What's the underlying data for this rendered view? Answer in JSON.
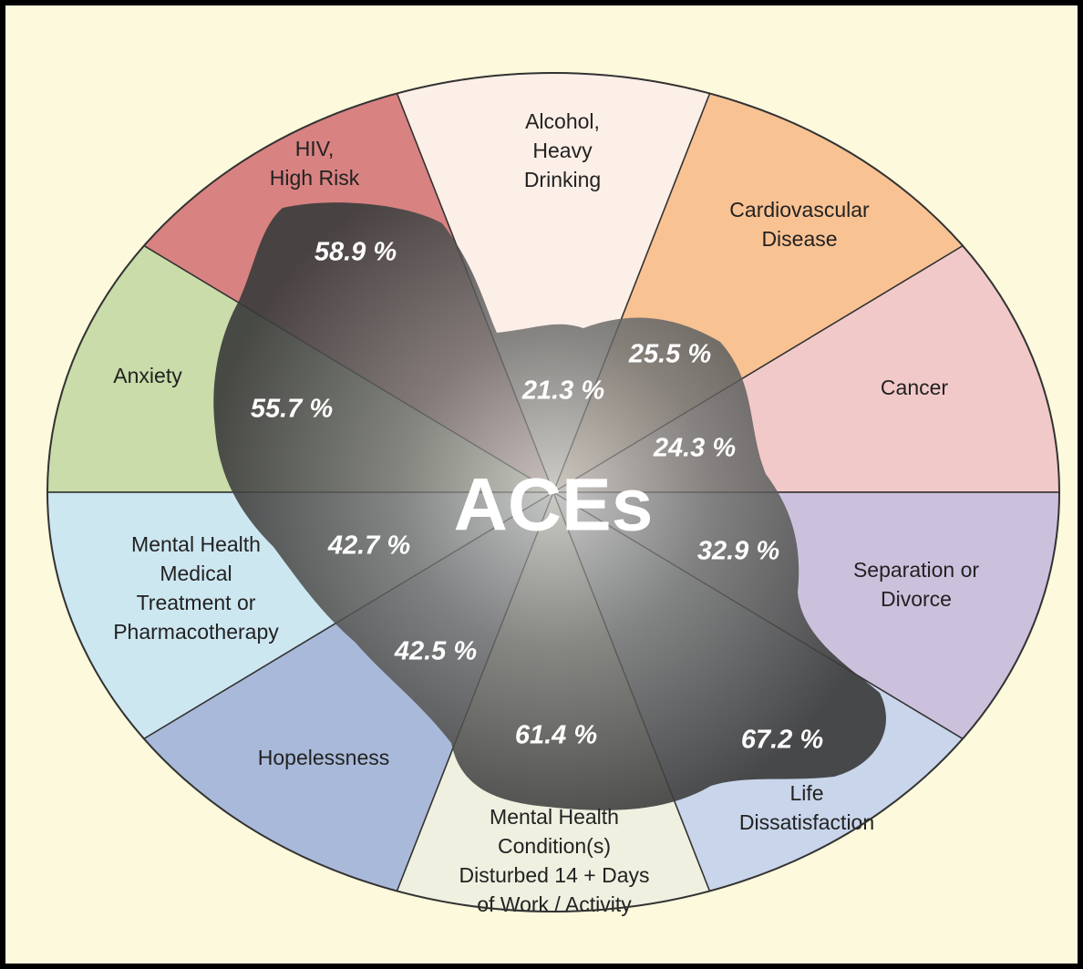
{
  "center": "ACEs",
  "sectors": [
    {
      "label": [
        "Cancer"
      ],
      "value": "24.3 %",
      "color": "#f2c9c9"
    },
    {
      "label": [
        "Cardiovascular",
        "Disease"
      ],
      "value": "25.5 %",
      "color": "#f9c293"
    },
    {
      "label": [
        "Alcohol,",
        "Heavy",
        "Drinking"
      ],
      "value": "21.3 %",
      "color": "#fcefe7"
    },
    {
      "label": [
        "HIV,",
        "High Risk"
      ],
      "value": "58.9 %",
      "color": "#d98282"
    },
    {
      "label": [
        "Anxiety"
      ],
      "value": "55.7 %",
      "color": "#c9dca9"
    },
    {
      "label": [
        "Mental Health",
        "Medical",
        "Treatment or",
        "Pharmacotherapy"
      ],
      "value": "42.7 %",
      "color": "#cde7f1"
    },
    {
      "label": [
        "Hopelessness"
      ],
      "value": "42.5 %",
      "color": "#a9b9d9"
    },
    {
      "label": [
        "Mental Health",
        "Condition(s)",
        "Disturbed 14 + Days",
        "of Work / Activity"
      ],
      "value": "61.4 %",
      "color": "#eff0e0"
    },
    {
      "label": [
        "Life",
        "Dissatisfaction"
      ],
      "value": "67.2 %",
      "color": "#c9d5ea"
    },
    {
      "label": [
        "Separation or",
        "Divorce"
      ],
      "value": "32.9 %",
      "color": "#ccc1dd"
    }
  ]
}
